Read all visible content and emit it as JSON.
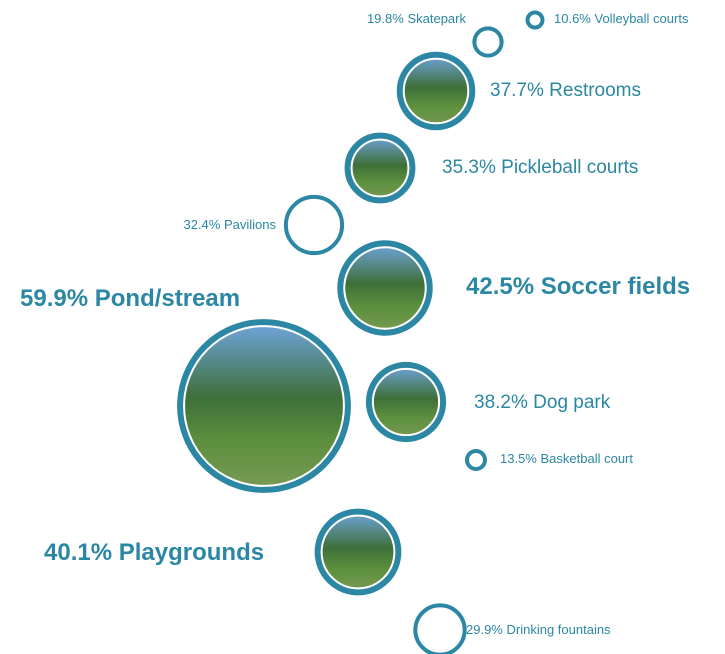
{
  "chart_data": {
    "type": "bubble",
    "categories": [
      "Skatepark",
      "Volleyball courts",
      "Restrooms",
      "Pickleball courts",
      "Pavilions",
      "Soccer fields",
      "Pond/stream",
      "Dog park",
      "Basketball court",
      "Playgrounds",
      "Drinking fountains"
    ],
    "values": [
      19.8,
      10.6,
      37.7,
      35.3,
      32.4,
      42.5,
      59.9,
      38.2,
      13.5,
      40.1,
      29.9
    ],
    "value_labels": [
      "19.8%",
      "10.6%",
      "37.7%",
      "35.3%",
      "32.4%",
      "42.5%",
      "59.9%",
      "38.2%",
      "13.5%",
      "40.1%",
      "29.9%"
    ],
    "color": "#2b87a3"
  }
}
